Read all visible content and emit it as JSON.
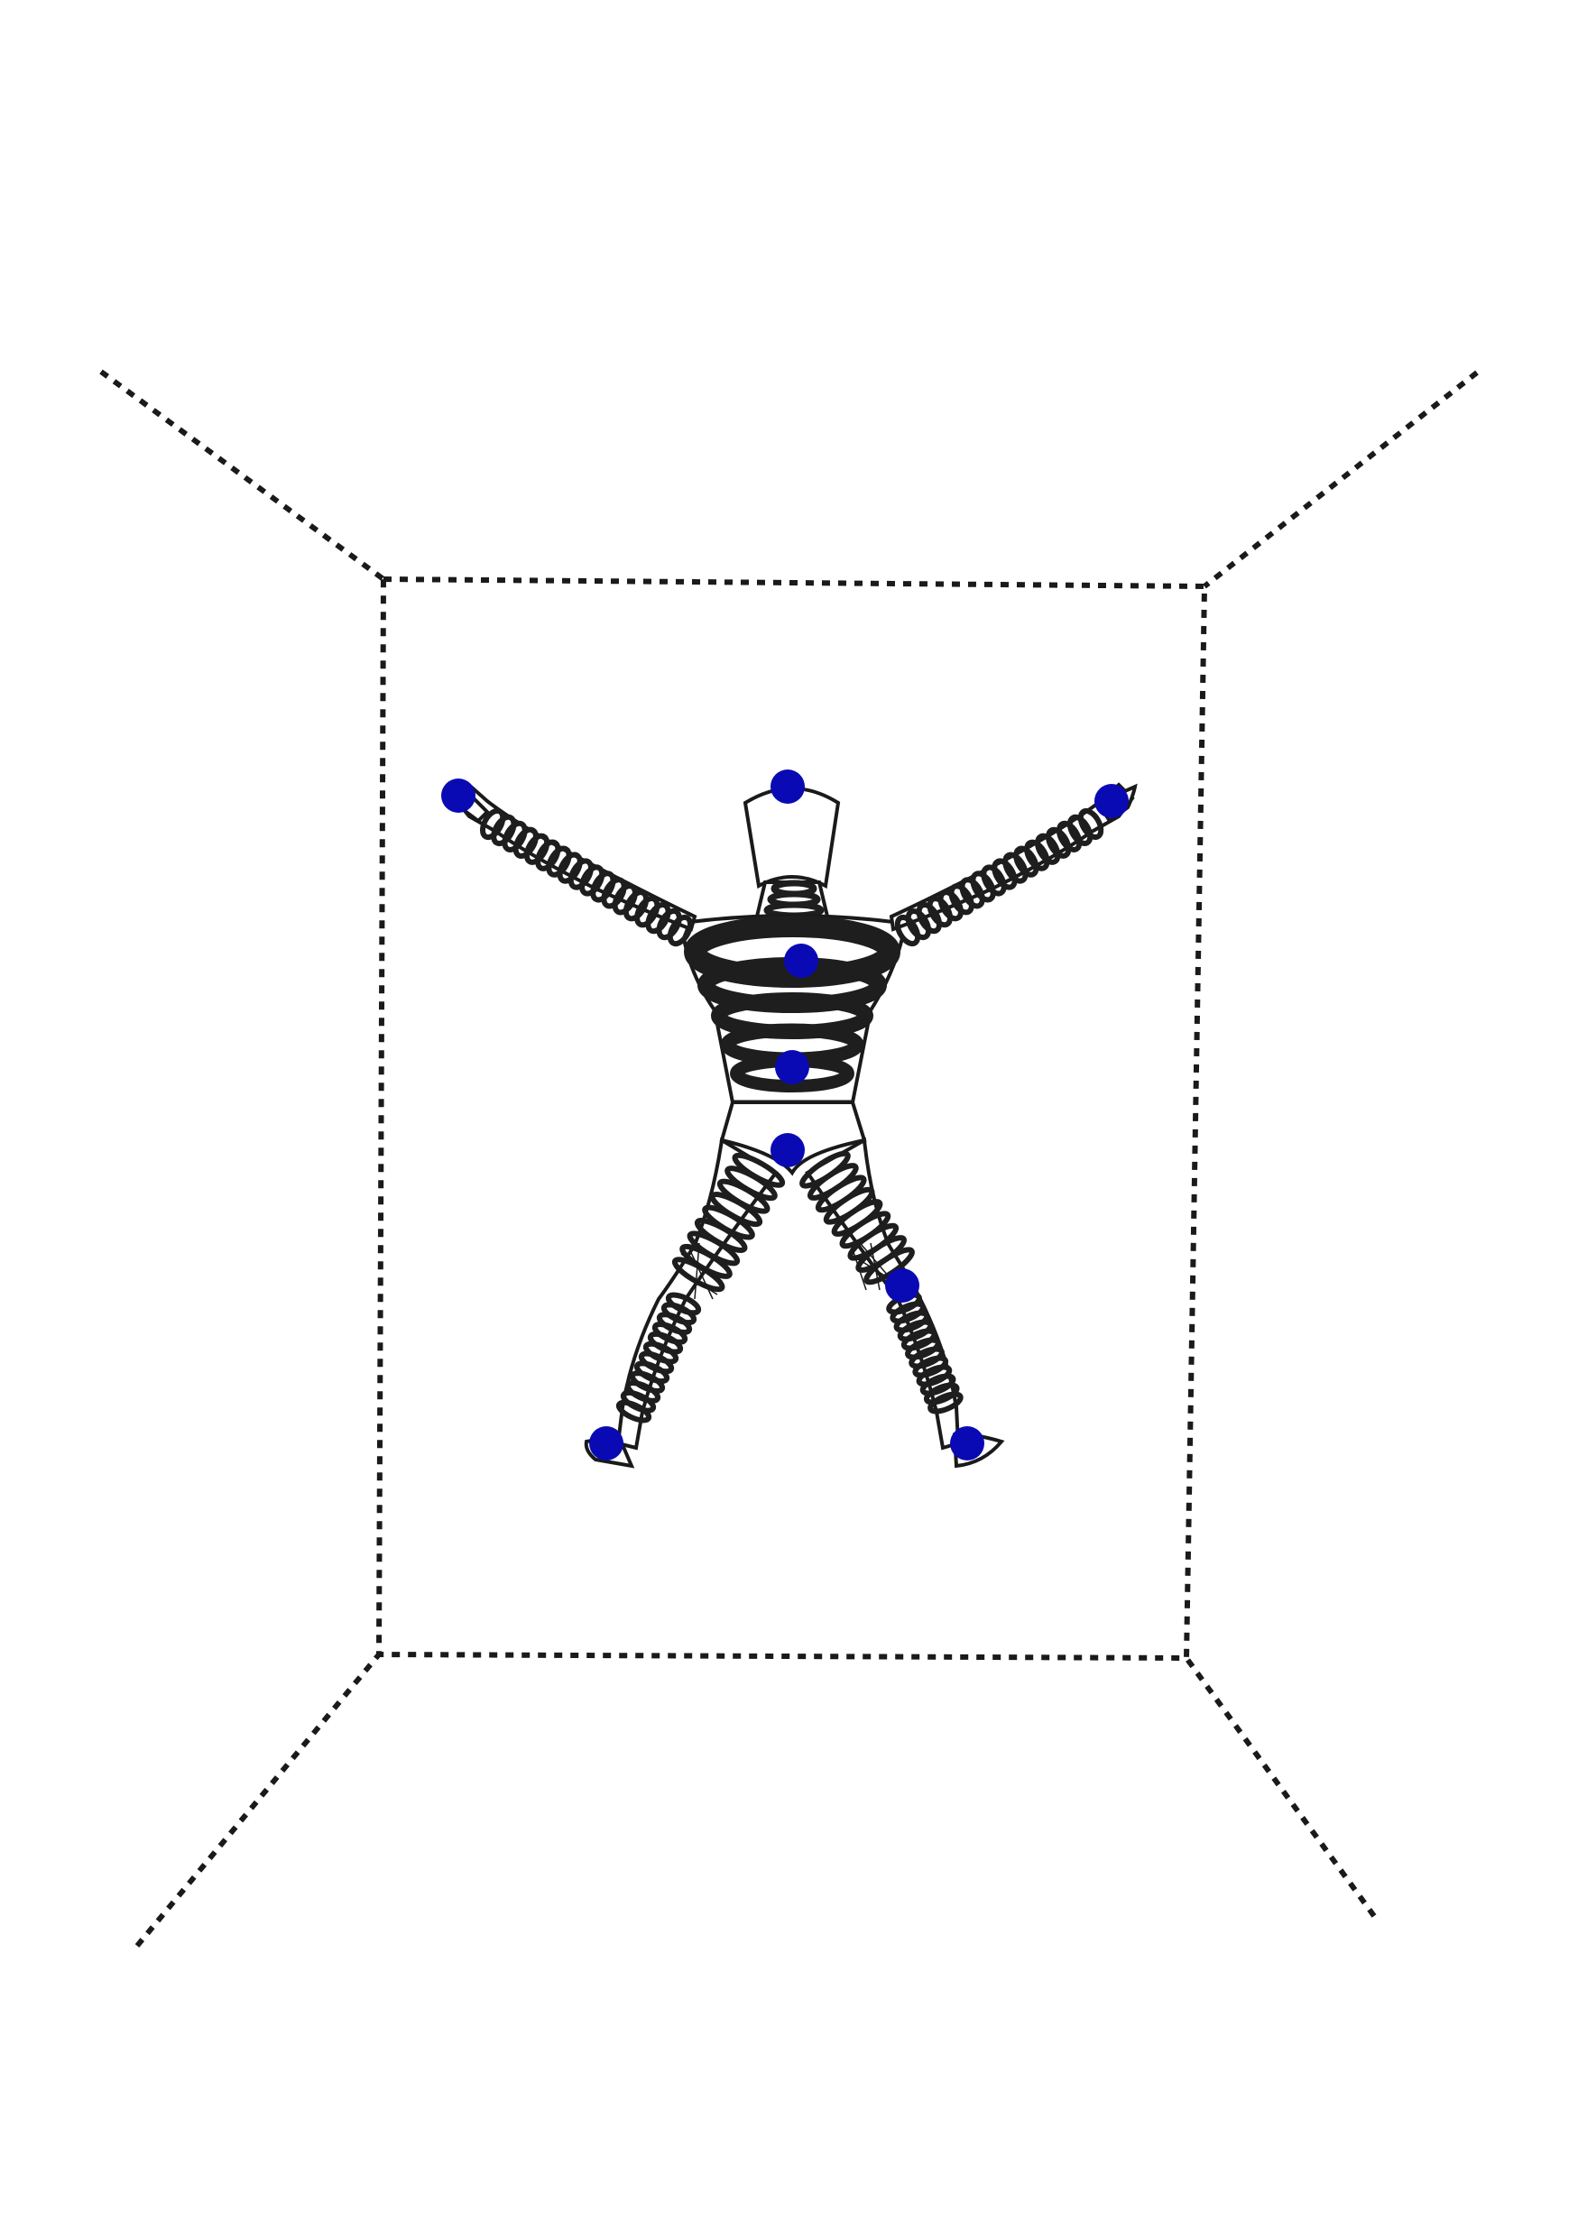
{
  "colors": {
    "background": "#ffffff",
    "line": "#1a1a1a",
    "spring": "#1e1e1e",
    "marker": "#0a0ab4"
  },
  "markers": [
    {
      "id": "head"
    },
    {
      "id": "right-hand"
    },
    {
      "id": "left-hand"
    },
    {
      "id": "chest"
    },
    {
      "id": "abdomen"
    },
    {
      "id": "pelvis"
    },
    {
      "id": "left-knee"
    },
    {
      "id": "right-foot"
    },
    {
      "id": "left-foot"
    }
  ]
}
